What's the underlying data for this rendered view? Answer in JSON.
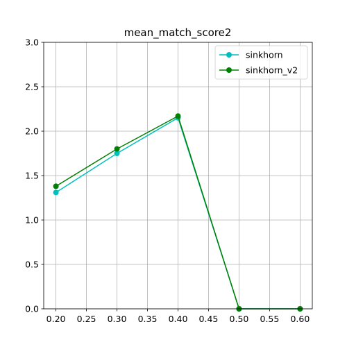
{
  "chart_data": {
    "type": "line",
    "title": "mean_match_score2",
    "xlabel": "",
    "ylabel": "",
    "x": [
      0.2,
      0.3,
      0.4,
      0.5,
      0.6
    ],
    "xlim": [
      0.18,
      0.62
    ],
    "ylim": [
      0.0,
      3.0
    ],
    "x_ticks": [
      "0.20",
      "0.25",
      "0.30",
      "0.35",
      "0.40",
      "0.45",
      "0.50",
      "0.55",
      "0.60"
    ],
    "y_ticks": [
      "0.0",
      "0.5",
      "1.0",
      "1.5",
      "2.0",
      "2.5",
      "3.0"
    ],
    "grid": true,
    "legend_position": "top-right",
    "series": [
      {
        "name": "sinkhorn",
        "color": "#00bfbf",
        "marker": "circle",
        "values": [
          1.31,
          1.75,
          2.15,
          0.0,
          0.0
        ]
      },
      {
        "name": "sinkhorn_v2",
        "color": "#008000",
        "marker": "circle",
        "values": [
          1.38,
          1.8,
          2.17,
          0.0,
          0.0
        ]
      }
    ]
  }
}
